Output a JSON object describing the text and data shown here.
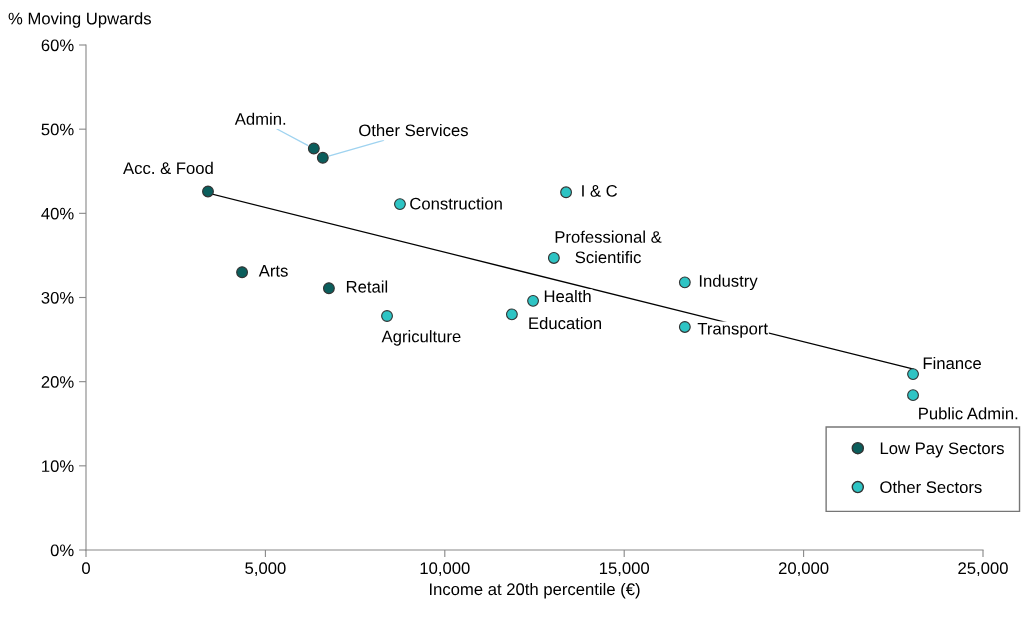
{
  "chart_data": {
    "type": "scatter",
    "ylabel": "% Moving Upwards",
    "xlabel": "Income at 20th percentile (€)",
    "xlim": [
      0,
      25000
    ],
    "xticks": [
      {
        "value": 0,
        "label": "0"
      },
      {
        "value": 5000,
        "label": "5,000"
      },
      {
        "value": 10000,
        "label": "10,000"
      },
      {
        "value": 15000,
        "label": "15,000"
      },
      {
        "value": 20000,
        "label": "20,000"
      },
      {
        "value": 25000,
        "label": "25,000"
      }
    ],
    "ylim": [
      0,
      60
    ],
    "yticks": [
      {
        "value": 0,
        "label": "0%"
      },
      {
        "value": 10,
        "label": "10%"
      },
      {
        "value": 20,
        "label": "20%"
      },
      {
        "value": 30,
        "label": "30%"
      },
      {
        "value": 40,
        "label": "40%"
      },
      {
        "value": 50,
        "label": "50%"
      },
      {
        "value": 60,
        "label": "60%"
      }
    ],
    "grid": false,
    "legend": "bottom right",
    "marker": "circle",
    "series": [
      {
        "name": "Low Pay Sectors",
        "color": "#0b5e5c",
        "x": [
          3400,
          6350,
          6600,
          4350,
          6770
        ],
        "values": [
          42.6,
          47.7,
          46.6,
          33.0,
          31.1
        ]
      },
      {
        "name": "Other Sectors",
        "color": "#2ec4c4",
        "x": [
          8750,
          8390,
          13380,
          13040,
          12460,
          11870,
          16690,
          16690,
          23050,
          23050
        ],
        "values": [
          41.1,
          27.8,
          42.5,
          34.7,
          29.6,
          28.0,
          31.8,
          26.5,
          20.9,
          18.4
        ]
      },
      {
        "type": "line",
        "marker": "none",
        "color": "#000000",
        "x": [
          3400,
          23050
        ],
        "values": [
          42.4,
          21.5
        ]
      }
    ],
    "annotations": [
      {
        "text": "Acc. & Food",
        "x": 3400,
        "y": 42.6
      },
      {
        "text": "Admin.",
        "x": 6350,
        "y": 47.7
      },
      {
        "text": "Other Services",
        "x": 6600,
        "y": 46.6
      },
      {
        "text": "Arts",
        "x": 4350,
        "y": 33.0
      },
      {
        "text": "Retail",
        "x": 6770,
        "y": 31.1
      },
      {
        "text": "Construction",
        "x": 8750,
        "y": 41.1
      },
      {
        "text": "Agriculture",
        "x": 8390,
        "y": 27.8
      },
      {
        "text": "I & C",
        "x": 13380,
        "y": 42.5
      },
      {
        "text": "Professional &\nScientific",
        "x": 13040,
        "y": 34.7
      },
      {
        "text": "Health",
        "x": 12460,
        "y": 29.6
      },
      {
        "text": "Education",
        "x": 11870,
        "y": 28.0
      },
      {
        "text": "Industry",
        "x": 16690,
        "y": 31.8
      },
      {
        "text": "Transport",
        "x": 16690,
        "y": 26.5
      },
      {
        "text": "Finance",
        "x": 23050,
        "y": 20.9
      },
      {
        "text": "Public Admin.",
        "x": 23050,
        "y": 18.4
      }
    ]
  }
}
